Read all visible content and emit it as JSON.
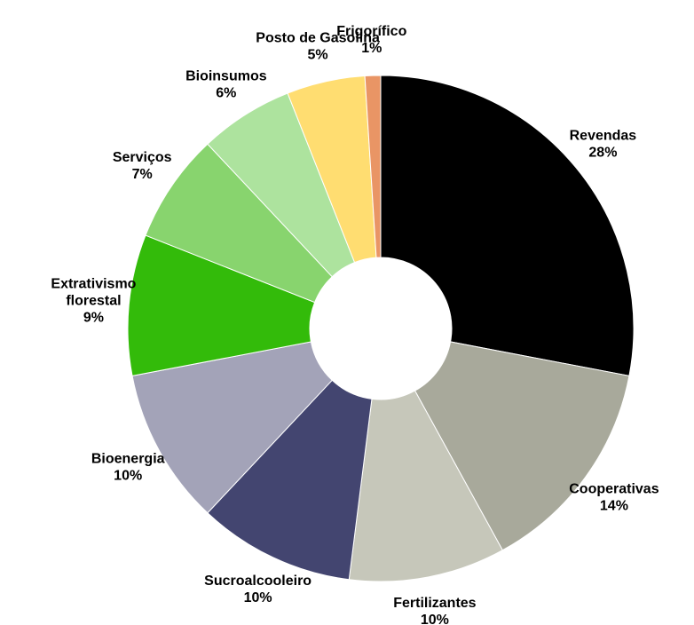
{
  "chart_data": {
    "type": "donut",
    "categories": [
      "Revendas",
      "Cooperativas",
      "Fertilizantes",
      "Sucroalcooleiro",
      "Bioenergia",
      "Extrativismo florestal",
      "Serviços",
      "Bioinsumos",
      "Posto de Gasolina",
      "Frigorífico"
    ],
    "values": [
      28,
      14,
      10,
      10,
      10,
      9,
      7,
      6,
      5,
      1
    ],
    "value_labels": [
      "28%",
      "14%",
      "10%",
      "10%",
      "10%",
      "9%",
      "7%",
      "6%",
      "5%",
      "1%"
    ],
    "colors": [
      "#000000",
      "#a8a99b",
      "#c6c7ba",
      "#434570",
      "#a3a3b8",
      "#33bb0a",
      "#88d46e",
      "#ade39e",
      "#ffdd71",
      "#e99565"
    ]
  }
}
